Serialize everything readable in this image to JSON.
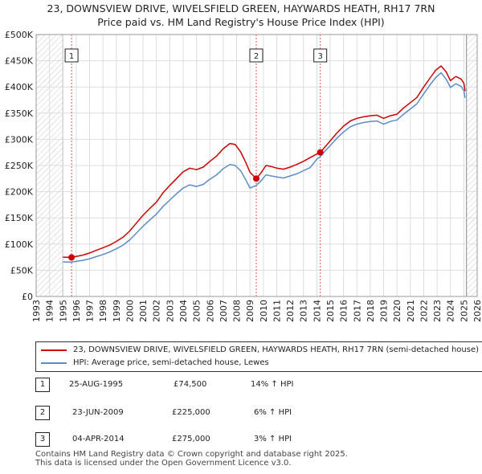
{
  "title_line1": "23, DOWNSVIEW DRIVE, WIVELSFIELD GREEN, HAYWARDS HEATH, RH17 7RN",
  "title_line2": "Price paid vs. HM Land Registry's House Price Index (HPI)",
  "chart_data": {
    "type": "line",
    "title": "23, DOWNSVIEW DRIVE, WIVELSFIELD GREEN, HAYWARDS HEATH, RH17 7RN — Price paid vs. HM Land Registry's House Price Index (HPI)",
    "xlabel": "",
    "ylabel": "",
    "xlim": [
      1993,
      2026
    ],
    "ylim": [
      0,
      500000
    ],
    "x_ticks": [
      "1993",
      "1994",
      "1995",
      "1996",
      "1997",
      "1998",
      "1999",
      "2000",
      "2001",
      "2002",
      "2003",
      "2004",
      "2005",
      "2006",
      "2007",
      "2008",
      "2009",
      "2010",
      "2011",
      "2012",
      "2013",
      "2014",
      "2015",
      "2016",
      "2017",
      "2018",
      "2019",
      "2020",
      "2021",
      "2022",
      "2023",
      "2024",
      "2025",
      "2026"
    ],
    "y_ticks": [
      {
        "value": 0,
        "label": "£0"
      },
      {
        "value": 50000,
        "label": "£50K"
      },
      {
        "value": 100000,
        "label": "£100K"
      },
      {
        "value": 150000,
        "label": "£150K"
      },
      {
        "value": 200000,
        "label": "£200K"
      },
      {
        "value": 250000,
        "label": "£250K"
      },
      {
        "value": 300000,
        "label": "£300K"
      },
      {
        "value": 350000,
        "label": "£350K"
      },
      {
        "value": 400000,
        "label": "£400K"
      },
      {
        "value": 450000,
        "label": "£450K"
      },
      {
        "value": 500000,
        "label": "£500K"
      }
    ],
    "hatched_ranges": [
      [
        1993,
        1995.0
      ],
      [
        2025.2,
        2026
      ]
    ],
    "series": [
      {
        "name": "23, DOWNSVIEW DRIVE, WIVELSFIELD GREEN, HAYWARDS HEATH, RH17 7RN (semi-detached house)",
        "color": "#cc0000",
        "x": [
          1995.0,
          1995.65,
          1996.5,
          1997.0,
          1997.5,
          1998.0,
          1998.5,
          1999.0,
          1999.5,
          2000.0,
          2000.5,
          2001.0,
          2001.5,
          2002.0,
          2002.5,
          2003.0,
          2003.5,
          2004.0,
          2004.5,
          2005.0,
          2005.5,
          2006.0,
          2006.5,
          2007.0,
          2007.5,
          2007.9,
          2008.3,
          2008.7,
          2009.0,
          2009.47,
          2009.8,
          2010.2,
          2010.6,
          2011.0,
          2011.5,
          2012.0,
          2012.5,
          2013.0,
          2013.5,
          2014.0,
          2014.26,
          2014.6,
          2015.0,
          2015.5,
          2016.0,
          2016.5,
          2017.0,
          2017.5,
          2018.0,
          2018.5,
          2019.0,
          2019.5,
          2020.0,
          2020.5,
          2021.0,
          2021.5,
          2022.0,
          2022.5,
          2022.9,
          2023.3,
          2023.7,
          2024.0,
          2024.4,
          2024.8,
          2025.0,
          2025.1
        ],
        "values": [
          75000,
          74500,
          79000,
          83000,
          88000,
          93000,
          98000,
          105000,
          113000,
          125000,
          140000,
          155000,
          168000,
          180000,
          198000,
          212000,
          225000,
          238000,
          245000,
          242000,
          247000,
          258000,
          268000,
          282000,
          292000,
          290000,
          276000,
          255000,
          237000,
          225000,
          235000,
          250000,
          248000,
          245000,
          243000,
          247000,
          252000,
          258000,
          265000,
          272000,
          275000,
          285000,
          297000,
          312000,
          325000,
          335000,
          340000,
          343000,
          345000,
          346000,
          340000,
          345000,
          348000,
          360000,
          370000,
          380000,
          400000,
          418000,
          432000,
          440000,
          428000,
          412000,
          420000,
          415000,
          407000,
          392000
        ]
      },
      {
        "name": "HPI: Average price, semi-detached house, Lewes",
        "color": "#5b8dc8",
        "x": [
          1995.0,
          1995.65,
          1996.5,
          1997.0,
          1997.5,
          1998.0,
          1998.5,
          1999.0,
          1999.5,
          2000.0,
          2000.5,
          2001.0,
          2001.5,
          2002.0,
          2002.5,
          2003.0,
          2003.5,
          2004.0,
          2004.5,
          2005.0,
          2005.5,
          2006.0,
          2006.5,
          2007.0,
          2007.5,
          2007.9,
          2008.3,
          2008.7,
          2009.0,
          2009.47,
          2009.8,
          2010.2,
          2010.6,
          2011.0,
          2011.5,
          2012.0,
          2012.5,
          2013.0,
          2013.5,
          2014.0,
          2014.26,
          2014.6,
          2015.0,
          2015.5,
          2016.0,
          2016.5,
          2017.0,
          2017.5,
          2018.0,
          2018.5,
          2019.0,
          2019.5,
          2020.0,
          2020.5,
          2021.0,
          2021.5,
          2022.0,
          2022.5,
          2022.9,
          2023.3,
          2023.7,
          2024.0,
          2024.4,
          2024.8,
          2025.0,
          2025.1
        ],
        "values": [
          66000,
          65500,
          69000,
          72000,
          76000,
          80000,
          85000,
          91000,
          98000,
          108000,
          121000,
          134000,
          146000,
          157000,
          172000,
          184000,
          196000,
          207000,
          213000,
          210000,
          214000,
          224000,
          232000,
          244000,
          252000,
          250000,
          240000,
          222000,
          207000,
          212000,
          220000,
          232000,
          230000,
          228000,
          226000,
          230000,
          234000,
          240000,
          246000,
          262000,
          267000,
          277000,
          288000,
          302000,
          314000,
          324000,
          329000,
          332000,
          334000,
          335000,
          329000,
          334000,
          337000,
          348000,
          358000,
          368000,
          387000,
          405000,
          418000,
          427000,
          414000,
          399000,
          406000,
          401000,
          393000,
          379000
        ]
      }
    ],
    "sales": [
      {
        "marker": "1",
        "date": "25-AUG-1995",
        "x": 1995.65,
        "price": 74500,
        "price_label": "£74,500",
        "hpi": "14% ↑ HPI"
      },
      {
        "marker": "2",
        "date": "23-JUN-2009",
        "x": 2009.47,
        "price": 225000,
        "price_label": "£225,000",
        "hpi": "6% ↑ HPI"
      },
      {
        "marker": "3",
        "date": "04-APR-2014",
        "x": 2014.26,
        "price": 275000,
        "price_label": "£275,000",
        "hpi": "3% ↑ HPI"
      }
    ]
  },
  "legend": {
    "price_label": "23, DOWNSVIEW DRIVE, WIVELSFIELD GREEN, HAYWARDS HEATH, RH17 7RN (semi-detached house)",
    "hpi_label": "HPI: Average price, semi-detached house, Lewes",
    "price_color": "#cc0000",
    "hpi_color": "#5b8dc8"
  },
  "footer_line1": "Contains HM Land Registry data © Crown copyright and database right 2025.",
  "footer_line2": "This data is licensed under the Open Government Licence v3.0."
}
